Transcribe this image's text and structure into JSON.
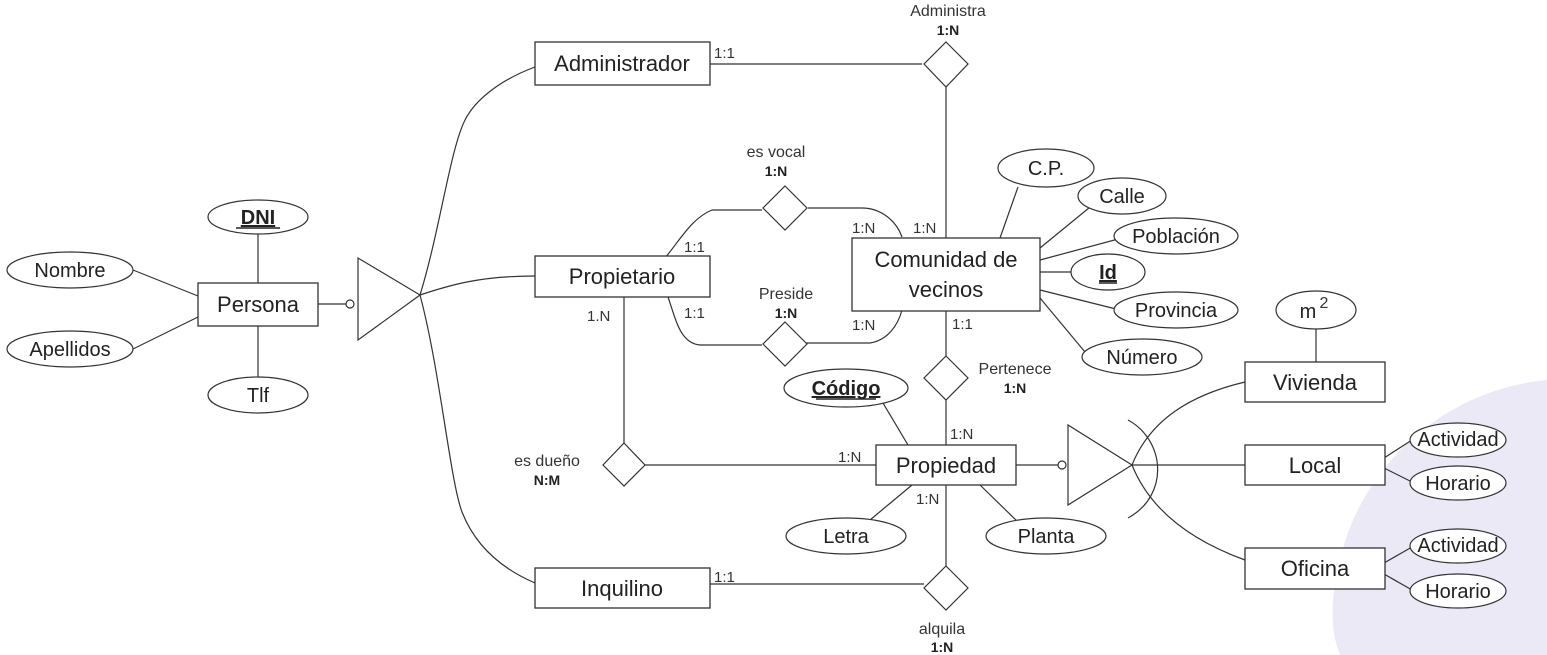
{
  "entities": {
    "persona": "Persona",
    "administrador": "Administrador",
    "propietario": "Propietario",
    "inquilino": "Inquilino",
    "comunidad_line1": "Comunidad de",
    "comunidad_line2": "vecinos",
    "propiedad": "Propiedad",
    "vivienda": "Vivienda",
    "local": "Local",
    "oficina": "Oficina"
  },
  "attributes": {
    "dni": "DNI",
    "nombre": "Nombre",
    "apellidos": "Apellidos",
    "tlf": "Tlf",
    "cp": "C.P.",
    "calle": "Calle",
    "poblacion": "Población",
    "id": "Id",
    "provincia": "Provincia",
    "numero": "Número",
    "codigo": "Código",
    "letra": "Letra",
    "planta": "Planta",
    "m2_base": "m",
    "m2_sup": "2",
    "local_actividad": "Actividad",
    "local_horario": "Horario",
    "oficina_actividad": "Actividad",
    "oficina_horario": "Horario"
  },
  "relationships": {
    "administra": {
      "name": "Administra",
      "card": "1:N"
    },
    "es_vocal": {
      "name": "es vocal",
      "card": "1:N"
    },
    "preside": {
      "name": "Preside",
      "card": "1:N"
    },
    "pertenece": {
      "name": "Pertenece",
      "card": "1:N"
    },
    "es_dueno": {
      "name": "es dueño",
      "card": "N:M"
    },
    "alquila": {
      "name": "alquila",
      "card": "1:N"
    }
  },
  "cardinalities": {
    "administrador_administra": "1:1",
    "propietario_vocal": "1:1",
    "comunidad_vocal": "1:N",
    "comunidad_administra": "1:N",
    "propietario_preside": "1:1",
    "comunidad_preside": "1:N",
    "propietario_dueno": "1.N",
    "comunidad_pertenece": "1:1",
    "propiedad_pertenece": "1:N",
    "propiedad_dueno": "1:N",
    "propiedad_alquila": "1:N",
    "inquilino_alquila": "1:1"
  }
}
